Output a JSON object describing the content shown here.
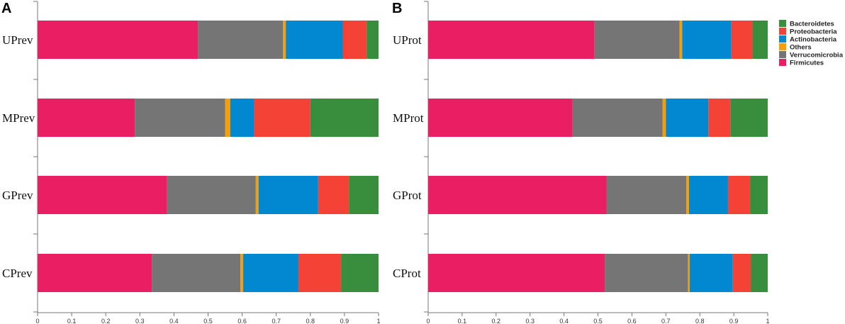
{
  "colors": {
    "Firmicutes": "#E91E63",
    "Verrucomicrobia": "#757575",
    "Others": "#F59E0B",
    "Actinobacteria": "#0288D1",
    "Proteobacteria": "#F44336",
    "Bacteroidetes": "#388E3C"
  },
  "legend": {
    "items": [
      "Bacteroidetes",
      "Proteobacteria",
      "Actinobacteria",
      "Others",
      "Verrucomicrobia",
      "Firmicutes"
    ]
  },
  "chart_data": [
    {
      "panel": "A",
      "type": "bar",
      "orientation": "horizontal",
      "stacked": true,
      "categories": [
        "UPrev",
        "MPrev",
        "GPrev",
        "CPrev"
      ],
      "xlim": [
        0,
        1
      ],
      "xticks": [
        "0",
        "0.1",
        "0.2",
        "0.3",
        "0.4",
        "0.5",
        "0.6",
        "0.7",
        "0.8",
        "0.9",
        "1"
      ],
      "series": [
        {
          "name": "Firmicutes",
          "values": [
            0.47,
            0.285,
            0.38,
            0.335
          ]
        },
        {
          "name": "Verrucomicrobia",
          "values": [
            0.25,
            0.265,
            0.26,
            0.26
          ]
        },
        {
          "name": "Others",
          "values": [
            0.008,
            0.015,
            0.008,
            0.008
          ]
        },
        {
          "name": "Actinobacteria",
          "values": [
            0.167,
            0.07,
            0.175,
            0.162
          ]
        },
        {
          "name": "Proteobacteria",
          "values": [
            0.07,
            0.165,
            0.09,
            0.125
          ]
        },
        {
          "name": "Bacteroidetes",
          "values": [
            0.035,
            0.2,
            0.087,
            0.11
          ]
        }
      ]
    },
    {
      "panel": "B",
      "type": "bar",
      "orientation": "horizontal",
      "stacked": true,
      "categories": [
        "UProt",
        "MProt",
        "GProt",
        "CProt"
      ],
      "xlim": [
        0,
        1
      ],
      "xticks": [
        "0",
        "0.1",
        "0.2",
        "0.3",
        "0.4",
        "0.5",
        "0.6",
        "0.7",
        "0.8",
        "0.9",
        "1"
      ],
      "series": [
        {
          "name": "Firmicutes",
          "values": [
            0.49,
            0.425,
            0.525,
            0.52
          ]
        },
        {
          "name": "Verrucomicrobia",
          "values": [
            0.25,
            0.265,
            0.235,
            0.245
          ]
        },
        {
          "name": "Others",
          "values": [
            0.008,
            0.01,
            0.008,
            0.005
          ]
        },
        {
          "name": "Actinobacteria",
          "values": [
            0.145,
            0.125,
            0.115,
            0.127
          ]
        },
        {
          "name": "Proteobacteria",
          "values": [
            0.062,
            0.065,
            0.065,
            0.053
          ]
        },
        {
          "name": "Bacteroidetes",
          "values": [
            0.045,
            0.11,
            0.052,
            0.05
          ]
        }
      ]
    }
  ]
}
